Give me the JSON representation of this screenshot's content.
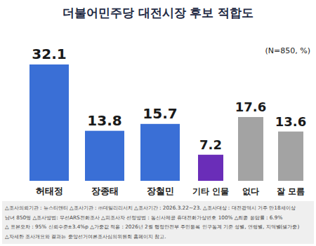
{
  "chart_data": {
    "type": "bar",
    "title": "더불어민주당 대전시장 후보 적합도",
    "subtitle": "(N=850, %)",
    "categories": [
      "허태정",
      "장종태",
      "장철민",
      "기타 인물",
      "없다",
      "잘 모름"
    ],
    "values": [
      32.1,
      13.8,
      15.7,
      7.2,
      17.6,
      13.6
    ],
    "colors": [
      "#3a6fd6",
      "#3a6fd6",
      "#3a6fd6",
      "#6a2db8",
      "#a3a3a3",
      "#a3a3a3"
    ],
    "ylim": [
      0,
      35
    ],
    "data_labels": true,
    "tick_labels": "x",
    "annotations": [
      "△조사의뢰기관 : 뉴스티앤티 △조사기관 : ㈜데일리리서치 △조사기간 : 2026.3.22~23. △조사대상 : 대전광역시 거주 만18세이상",
      "남녀 850명 △조사방법: 무선ARS전화조사 △피조사자 선정방법 : 통신사제공 휴대전화가상번호 100% △최종 응답률 : 6.9%",
      "△ 표본오차 : 95% 신뢰수준±3.4%p △가중값 적용 : 2026년 2월 행정안전부 주민등록 인구통계 기준 성별, 연령별, 지역별(셀가중)",
      "△자세한 조사개요와 결과는 중앙선거여론조사심의위원회 홈페이지 참고."
    ]
  }
}
